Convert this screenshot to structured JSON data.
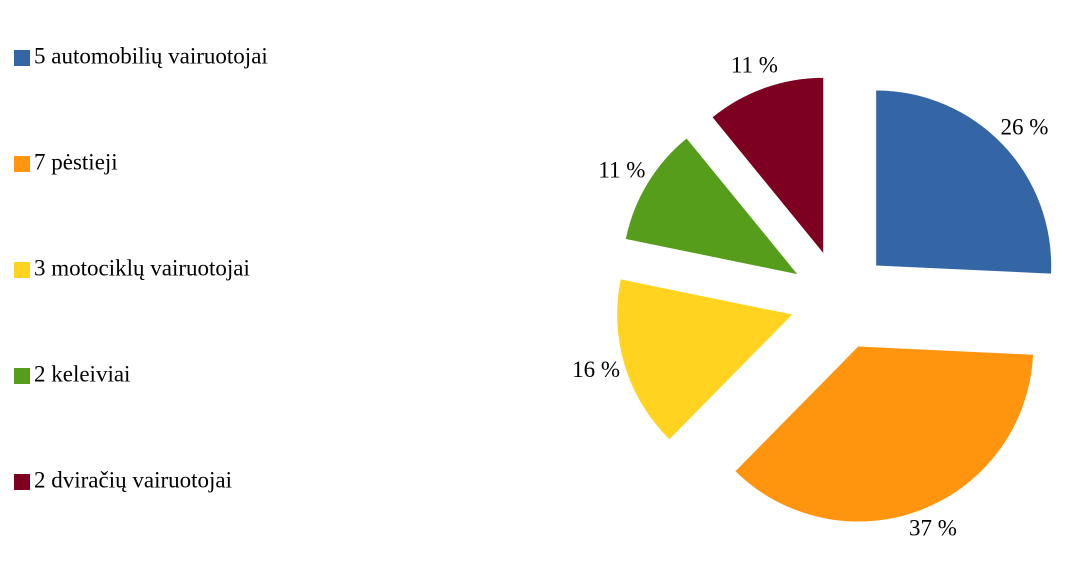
{
  "chart_data": {
    "type": "pie",
    "categories": [
      "5 automobilių vairuotojai",
      "7 pėstieji",
      "3 motociklų vairuotojai",
      "2 keleiviai",
      "2 dviračių vairuotojai"
    ],
    "values": [
      26,
      37,
      16,
      11,
      11
    ],
    "value_labels": [
      "26 %",
      "37 %",
      "16 %",
      "11 %",
      "11 %"
    ],
    "colors": [
      "#3465a4",
      "#ff950e",
      "#ffd320",
      "#579d1c",
      "#7e0021"
    ],
    "legend": "left"
  }
}
